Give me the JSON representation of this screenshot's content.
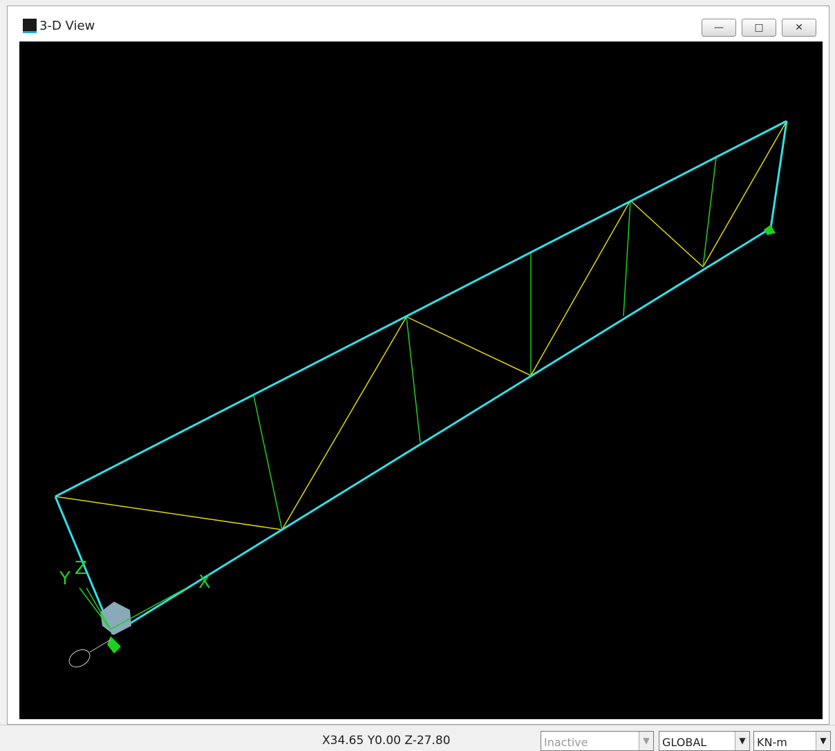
{
  "window": {
    "title": "3-D View",
    "axes": {
      "x": "X",
      "y": "Y",
      "z": "Z"
    }
  },
  "status_bar": {
    "coordinates": "X34.65 Y0.00 Z-27.80",
    "mode": "Inactive",
    "coordinate_system": "GLOBAL",
    "units": "KN-m"
  }
}
